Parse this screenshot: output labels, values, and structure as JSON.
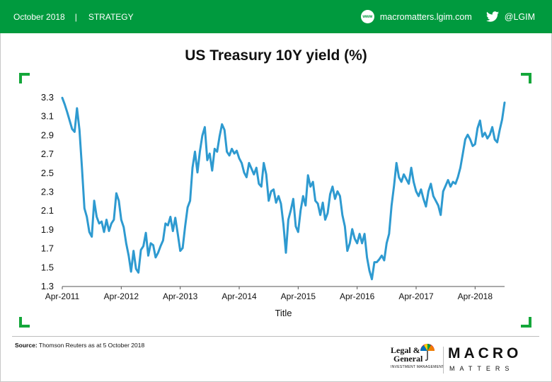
{
  "header": {
    "date": "October 2018",
    "separator": "|",
    "section": "STRATEGY",
    "www_label": "www",
    "website": "macromatters.lgim.com",
    "twitter": "@LGIM",
    "bg_color": "#009a3e"
  },
  "footer": {
    "source_label": "Source:",
    "source_text": "Thomson Reuters as at 5 October 2018"
  },
  "logos": {
    "lg_line1": "Legal &",
    "lg_line2": "General",
    "lg_line3": "INVESTMENT MANAGEMENT",
    "macro": "MACRO",
    "matters": "MATTERS"
  },
  "chart_data": {
    "type": "line",
    "title": "US Treasury 10Y yield (%)",
    "xlabel": "Title",
    "ylabel": "",
    "ylim": [
      1.3,
      3.3
    ],
    "yticks": [
      "3.3",
      "3.1",
      "2.9",
      "2.7",
      "2.5",
      "2.3",
      "2.1",
      "1.9",
      "1.7",
      "1.5",
      "1.3"
    ],
    "xlim": [
      "2011-04",
      "2018-10"
    ],
    "xticks": [
      "Apr-2011",
      "Apr-2012",
      "Apr-2013",
      "Apr-2014",
      "Apr-2015",
      "Apr-2016",
      "Apr-2017",
      "Apr-2018"
    ],
    "grid": false,
    "line_color": "#2e9ad0",
    "series": [
      {
        "name": "",
        "points": [
          [
            "2011-04",
            3.29
          ],
          [
            "2011-04",
            3.22
          ],
          [
            "2011-05",
            3.14
          ],
          [
            "2011-05",
            3.05
          ],
          [
            "2011-06",
            2.96
          ],
          [
            "2011-06",
            2.93
          ],
          [
            "2011-07",
            3.18
          ],
          [
            "2011-07",
            2.95
          ],
          [
            "2011-08",
            2.55
          ],
          [
            "2011-08",
            2.12
          ],
          [
            "2011-09",
            2.03
          ],
          [
            "2011-09",
            1.87
          ],
          [
            "2011-10",
            1.82
          ],
          [
            "2011-10",
            2.2
          ],
          [
            "2011-11",
            2.03
          ],
          [
            "2011-11",
            1.96
          ],
          [
            "2011-12",
            1.98
          ],
          [
            "2011-12",
            1.87
          ],
          [
            "2012-01",
            2.0
          ],
          [
            "2012-01",
            1.88
          ],
          [
            "2012-02",
            1.96
          ],
          [
            "2012-02",
            2.0
          ],
          [
            "2012-03",
            2.28
          ],
          [
            "2012-03",
            2.2
          ],
          [
            "2012-04",
            2.0
          ],
          [
            "2012-04",
            1.92
          ],
          [
            "2012-05",
            1.75
          ],
          [
            "2012-05",
            1.62
          ],
          [
            "2012-06",
            1.45
          ],
          [
            "2012-06",
            1.67
          ],
          [
            "2012-07",
            1.48
          ],
          [
            "2012-07",
            1.44
          ],
          [
            "2012-08",
            1.68
          ],
          [
            "2012-08",
            1.72
          ],
          [
            "2012-09",
            1.86
          ],
          [
            "2012-09",
            1.62
          ],
          [
            "2012-10",
            1.75
          ],
          [
            "2012-10",
            1.73
          ],
          [
            "2012-11",
            1.6
          ],
          [
            "2012-11",
            1.65
          ],
          [
            "2012-12",
            1.72
          ],
          [
            "2012-12",
            1.78
          ],
          [
            "2013-01",
            1.96
          ],
          [
            "2013-01",
            1.94
          ],
          [
            "2013-02",
            2.03
          ],
          [
            "2013-02",
            1.88
          ],
          [
            "2013-03",
            2.02
          ],
          [
            "2013-03",
            1.85
          ],
          [
            "2013-04",
            1.67
          ],
          [
            "2013-04",
            1.7
          ],
          [
            "2013-05",
            1.93
          ],
          [
            "2013-05",
            2.13
          ],
          [
            "2013-06",
            2.2
          ],
          [
            "2013-06",
            2.55
          ],
          [
            "2013-07",
            2.72
          ],
          [
            "2013-07",
            2.5
          ],
          [
            "2013-08",
            2.72
          ],
          [
            "2013-08",
            2.89
          ],
          [
            "2013-09",
            2.98
          ],
          [
            "2013-09",
            2.63
          ],
          [
            "2013-10",
            2.7
          ],
          [
            "2013-10",
            2.52
          ],
          [
            "2013-11",
            2.75
          ],
          [
            "2013-11",
            2.72
          ],
          [
            "2013-12",
            2.88
          ],
          [
            "2013-12",
            3.01
          ],
          [
            "2014-01",
            2.95
          ],
          [
            "2014-01",
            2.72
          ],
          [
            "2014-02",
            2.68
          ],
          [
            "2014-02",
            2.75
          ],
          [
            "2014-03",
            2.7
          ],
          [
            "2014-03",
            2.73
          ],
          [
            "2014-04",
            2.65
          ],
          [
            "2014-04",
            2.6
          ],
          [
            "2014-05",
            2.5
          ],
          [
            "2014-05",
            2.45
          ],
          [
            "2014-06",
            2.6
          ],
          [
            "2014-06",
            2.54
          ],
          [
            "2014-07",
            2.48
          ],
          [
            "2014-07",
            2.55
          ],
          [
            "2014-08",
            2.38
          ],
          [
            "2014-08",
            2.35
          ],
          [
            "2014-09",
            2.6
          ],
          [
            "2014-09",
            2.48
          ],
          [
            "2014-10",
            2.2
          ],
          [
            "2014-10",
            2.3
          ],
          [
            "2014-11",
            2.32
          ],
          [
            "2014-11",
            2.18
          ],
          [
            "2014-12",
            2.25
          ],
          [
            "2014-12",
            2.17
          ],
          [
            "2015-01",
            1.95
          ],
          [
            "2015-01",
            1.65
          ],
          [
            "2015-02",
            2.0
          ],
          [
            "2015-02",
            2.1
          ],
          [
            "2015-03",
            2.22
          ],
          [
            "2015-03",
            1.93
          ],
          [
            "2015-04",
            1.87
          ],
          [
            "2015-04",
            2.1
          ],
          [
            "2015-05",
            2.25
          ],
          [
            "2015-05",
            2.15
          ],
          [
            "2015-06",
            2.47
          ],
          [
            "2015-06",
            2.35
          ],
          [
            "2015-07",
            2.4
          ],
          [
            "2015-07",
            2.2
          ],
          [
            "2015-08",
            2.17
          ],
          [
            "2015-08",
            2.05
          ],
          [
            "2015-09",
            2.18
          ],
          [
            "2015-09",
            2.0
          ],
          [
            "2015-10",
            2.07
          ],
          [
            "2015-10",
            2.27
          ],
          [
            "2015-11",
            2.35
          ],
          [
            "2015-11",
            2.22
          ],
          [
            "2015-12",
            2.3
          ],
          [
            "2015-12",
            2.25
          ],
          [
            "2016-01",
            2.05
          ],
          [
            "2016-01",
            1.93
          ],
          [
            "2016-02",
            1.67
          ],
          [
            "2016-02",
            1.75
          ],
          [
            "2016-03",
            1.9
          ],
          [
            "2016-03",
            1.8
          ],
          [
            "2016-04",
            1.75
          ],
          [
            "2016-04",
            1.85
          ],
          [
            "2016-05",
            1.75
          ],
          [
            "2016-05",
            1.85
          ],
          [
            "2016-06",
            1.6
          ],
          [
            "2016-06",
            1.46
          ],
          [
            "2016-07",
            1.37
          ],
          [
            "2016-07",
            1.55
          ],
          [
            "2016-08",
            1.55
          ],
          [
            "2016-08",
            1.58
          ],
          [
            "2016-09",
            1.62
          ],
          [
            "2016-09",
            1.57
          ],
          [
            "2016-10",
            1.75
          ],
          [
            "2016-10",
            1.85
          ],
          [
            "2016-11",
            2.15
          ],
          [
            "2016-11",
            2.36
          ],
          [
            "2016-12",
            2.6
          ],
          [
            "2016-12",
            2.45
          ],
          [
            "2017-01",
            2.4
          ],
          [
            "2017-01",
            2.48
          ],
          [
            "2017-02",
            2.43
          ],
          [
            "2017-02",
            2.38
          ],
          [
            "2017-03",
            2.55
          ],
          [
            "2017-03",
            2.4
          ],
          [
            "2017-04",
            2.3
          ],
          [
            "2017-04",
            2.25
          ],
          [
            "2017-05",
            2.32
          ],
          [
            "2017-05",
            2.22
          ],
          [
            "2017-06",
            2.14
          ],
          [
            "2017-06",
            2.3
          ],
          [
            "2017-07",
            2.38
          ],
          [
            "2017-07",
            2.25
          ],
          [
            "2017-08",
            2.2
          ],
          [
            "2017-08",
            2.15
          ],
          [
            "2017-09",
            2.05
          ],
          [
            "2017-09",
            2.3
          ],
          [
            "2017-10",
            2.36
          ],
          [
            "2017-10",
            2.42
          ],
          [
            "2017-11",
            2.35
          ],
          [
            "2017-11",
            2.4
          ],
          [
            "2017-12",
            2.38
          ],
          [
            "2017-12",
            2.45
          ],
          [
            "2018-01",
            2.55
          ],
          [
            "2018-01",
            2.7
          ],
          [
            "2018-02",
            2.85
          ],
          [
            "2018-02",
            2.9
          ],
          [
            "2018-03",
            2.85
          ],
          [
            "2018-03",
            2.78
          ],
          [
            "2018-04",
            2.8
          ],
          [
            "2018-04",
            2.97
          ],
          [
            "2018-05",
            3.05
          ],
          [
            "2018-05",
            2.88
          ],
          [
            "2018-06",
            2.92
          ],
          [
            "2018-06",
            2.86
          ],
          [
            "2018-07",
            2.9
          ],
          [
            "2018-07",
            2.98
          ],
          [
            "2018-08",
            2.85
          ],
          [
            "2018-08",
            2.82
          ],
          [
            "2018-09",
            2.95
          ],
          [
            "2018-09",
            3.06
          ],
          [
            "2018-10",
            3.24
          ]
        ]
      }
    ]
  }
}
